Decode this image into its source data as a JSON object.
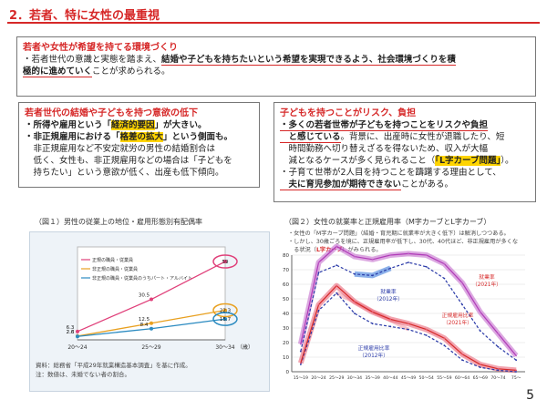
{
  "slide": {
    "title": "2．若者、特に女性の最重視",
    "page_number": "5"
  },
  "top_box": {
    "header": "若者や女性が希望を持てる環境づくり",
    "line1_a": "・若者世代の意識と実態を踏まえ、",
    "line1_b": "結婚や子どもを持ちたいという希望を実現できるよう、社会環境づくりを積",
    "line2_a": "極的に進めていく",
    "line2_b": "ことが求められる。"
  },
  "left_box": {
    "header": "若者世代の結婚や子どもを持つ意欲の低下",
    "l1_a": "・所得や雇用という「",
    "l1_hl": "経済的要因",
    "l1_b": "」が大きい。",
    "l2_a": "・非正規雇用における「",
    "l2_hl": "格差の拡大",
    "l2_b": "」という側面も。",
    "l3": "　非正規雇用など不安定就労の男性の結婚割合は",
    "l4": "　低く、女性も、非正規雇用などの場合は「子どもを",
    "l5": "　持ちたい」という意欲が低く、出産も低下傾向。"
  },
  "right_box": {
    "header": "子どもを持つことがリスク、負担",
    "l1": "・多くの若者世帯が子どもを持つことをリスクや負担",
    "l2_a": "　と感じている",
    "l2_b": "。背景に、出産時に女性が退職したり、短",
    "l3": "　時間勤務へ切り替えざるを得ないため、収入が大幅",
    "l4_a": "　減となるケースが多く見られること（",
    "l4_hl": "「L字カーブ問題」",
    "l4_b": "）。",
    "l5": "・子育て世帯が2人目を持つことを躊躇する理由として、",
    "l6_a": "　夫に育児参加が期待できない",
    "l6_b": "ことがある。"
  },
  "figure1": {
    "caption": "（図１）男性の従業上の地位・雇用形態別有配偶率",
    "legend": [
      "正規の職員・従業員",
      "非正規の職員・従業員",
      "非正規の職員・従業員のうちパート・アルバイト"
    ],
    "x_labels": [
      "20～24",
      "25～29",
      "30～34",
      "（歳）"
    ],
    "footnote1": "資料：総務省「平成29年就業構造基本調査」を基に作成。",
    "footnote2": "注：数値は、未婚でない者の割合。"
  },
  "figure2": {
    "caption": "（図２）女性の就業率と正規雇用率（M字カーブとL字カーブ）",
    "note1": "・女性の「M字カーブ問題」（結婚・育児期に就業率が大きく低下）は解消しつつある。",
    "note2": "・しかし、30歳ごろを境に、正規雇用率が低下し、30代、40代ほど、非正規雇用が多くな",
    "note3_a": "　る状況（",
    "note3_hl": "L字カーブ",
    "note3_b": "）がみられる。",
    "labels": {
      "emp2021": [
        "就業率",
        "（2021年）"
      ],
      "emp2012": [
        "就業率",
        "（2012年）"
      ],
      "reg2021": [
        "正規雇用比率",
        "（2021年）"
      ],
      "reg2012": [
        "正規雇用比率",
        "（2012年）"
      ]
    },
    "y_ticks": [
      "0",
      "10",
      "20",
      "30",
      "40",
      "50",
      "60",
      "70",
      "80"
    ],
    "x_ticks": [
      "15～19",
      "20～24",
      "25～29",
      "30～34",
      "35～39",
      "40～44",
      "45～49",
      "50～54",
      "55～59",
      "60～64",
      "65～69",
      "70～74",
      "75～"
    ]
  },
  "chart_data": [
    {
      "type": "line",
      "title": "（図１）男性の従業上の地位・雇用形態別有配偶率",
      "categories": [
        "20～24",
        "25～29",
        "30～34"
      ],
      "series": [
        {
          "name": "正規の職員・従業員",
          "values": [
            6.3,
            30.5,
            59.0
          ],
          "color": "#e0407a"
        },
        {
          "name": "非正規の職員・従業員",
          "values": [
            2.8,
            12.5,
            22.3
          ],
          "color": "#e8a020"
        },
        {
          "name": "非正規の職員・従業員のうちパート・アルバイト",
          "values": [
            2.6,
            8.4,
            15.7
          ],
          "color": "#2a8ac0"
        }
      ],
      "ylim": [
        0,
        70
      ]
    },
    {
      "type": "line",
      "title": "（図２）女性の就業率と正規雇用率（M字カーブとL字カーブ）",
      "categories": [
        "15～19",
        "20～24",
        "25～29",
        "30～34",
        "35～39",
        "40～44",
        "45～49",
        "50～54",
        "55～59",
        "60～64",
        "65～69",
        "70～74",
        "75～"
      ],
      "ylim": [
        0,
        80
      ],
      "series": [
        {
          "name": "就業率（2021年）",
          "values": [
            19,
            75,
            86,
            79,
            77,
            80,
            81,
            80,
            74,
            61,
            41,
            26,
            11
          ],
          "color": "#c060c8"
        },
        {
          "name": "就業率（2012年）",
          "values": [
            14,
            68,
            73,
            67,
            66,
            71,
            75,
            72,
            64,
            46,
            28,
            17,
            8
          ],
          "color": "#2a3aa8"
        },
        {
          "name": "正規雇用比率（2021年）",
          "values": [
            6,
            46,
            59,
            48,
            41,
            36,
            33,
            29,
            23,
            12,
            5,
            2,
            1
          ],
          "color": "#e85a6e"
        },
        {
          "name": "正規雇用比率（2012年）",
          "values": [
            5,
            42,
            54,
            40,
            33,
            31,
            29,
            25,
            18,
            8,
            3,
            1,
            0
          ],
          "color": "#2a3aa8"
        }
      ]
    }
  ]
}
